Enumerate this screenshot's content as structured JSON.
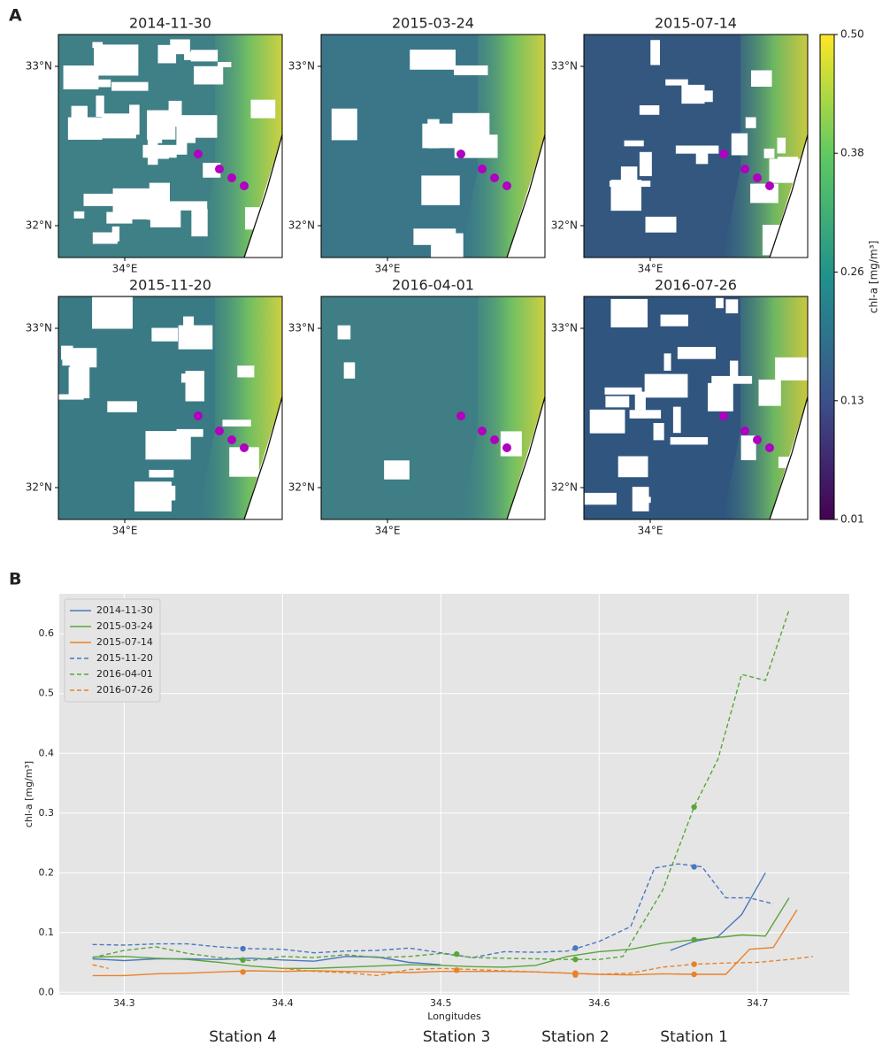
{
  "chart_data": [
    {
      "type": "map",
      "panel_label": "A",
      "panels": [
        {
          "title": "2014-11-30"
        },
        {
          "title": "2015-03-24"
        },
        {
          "title": "2015-07-14"
        },
        {
          "title": "2015-11-20"
        },
        {
          "title": "2016-04-01"
        },
        {
          "title": "2016-07-26"
        }
      ],
      "xlim": [
        33.585,
        34.985
      ],
      "ylim": [
        31.8,
        33.2
      ],
      "xticks": [
        {
          "value": 34,
          "label": "34°E"
        }
      ],
      "yticks": [
        {
          "value": 33,
          "label": "33°N"
        },
        {
          "value": 32,
          "label": "32°N"
        }
      ],
      "colorbar": {
        "label": "chl-a [mg/m³]",
        "lim": [
          0.01,
          0.5
        ],
        "ticks": [
          0.01,
          0.13,
          0.26,
          0.38,
          {
            "value": 0.5,
            "label": "0.50"
          }
        ],
        "colormap": [
          "#440154",
          "#3b528b",
          "#21918c",
          "#5ec962",
          "#fde725"
        ]
      }
    },
    {
      "type": "line",
      "panel_label": "B",
      "xlabel": "Longitudes",
      "ylabel": "chl-a [mg/m³]",
      "xlim": [
        34.259,
        34.758
      ],
      "ylim": [
        -0.004,
        0.667
      ],
      "xticks": [
        34.3,
        34.4,
        34.5,
        34.6,
        34.7
      ],
      "yticks": [
        {
          "value": 0,
          "label": "0.0"
        },
        0.1,
        0.2,
        0.3,
        0.4,
        0.5,
        0.6
      ],
      "grid": true,
      "legend": "upper left",
      "stations": [
        {
          "label": "Station 4",
          "x": 34.375
        },
        {
          "label": "Station 3",
          "x": 34.51
        },
        {
          "label": "Station 2",
          "x": 34.585
        },
        {
          "label": "Station 1",
          "x": 34.66
        }
      ],
      "series": [
        {
          "name": "2014-11-30",
          "color": "#4a78c0",
          "dash": false,
          "x": [
            34.28,
            34.3,
            34.32,
            34.34,
            34.36,
            34.38,
            34.4,
            34.42,
            34.44,
            34.46,
            34.48,
            34.5,
            34.52,
            34.645,
            34.66,
            34.675,
            34.69,
            34.705
          ],
          "values": [
            0.056,
            0.053,
            0.056,
            0.056,
            0.055,
            0.057,
            0.054,
            0.052,
            0.06,
            0.059,
            0.05,
            0.046,
            null,
            0.07,
            0.085,
            0.093,
            0.13,
            0.2
          ]
        },
        {
          "name": "2015-03-24",
          "color": "#5aa53c",
          "dash": false,
          "x": [
            34.28,
            34.3,
            34.32,
            34.34,
            34.36,
            34.38,
            34.4,
            34.42,
            34.44,
            34.46,
            34.48,
            34.5,
            34.52,
            34.54,
            34.56,
            34.58,
            34.6,
            34.62,
            34.64,
            34.66,
            34.68,
            34.69,
            34.705,
            34.72
          ],
          "values": [
            0.059,
            0.06,
            0.057,
            0.055,
            0.05,
            0.044,
            0.04,
            0.04,
            0.042,
            0.044,
            0.046,
            0.045,
            0.043,
            0.042,
            0.045,
            0.06,
            0.068,
            0.072,
            0.082,
            0.088,
            0.093,
            0.096,
            0.094,
            0.158
          ],
          "markers": {
            "x": [
              34.66
            ],
            "values": [
              0.088
            ]
          }
        },
        {
          "name": "2015-07-14",
          "color": "#e8822a",
          "dash": false,
          "x": [
            34.28,
            34.3,
            34.32,
            34.34,
            34.36,
            34.38,
            34.4,
            34.42,
            34.44,
            34.46,
            34.48,
            34.5,
            34.52,
            34.54,
            34.56,
            34.58,
            34.6,
            34.62,
            34.64,
            34.66,
            34.68,
            34.695,
            34.71,
            34.725
          ],
          "values": [
            0.028,
            0.028,
            0.031,
            0.032,
            0.034,
            0.036,
            0.035,
            0.036,
            0.035,
            0.034,
            0.033,
            0.035,
            0.035,
            0.035,
            0.034,
            0.032,
            0.03,
            0.029,
            0.031,
            0.03,
            0.03,
            0.072,
            0.075,
            0.138
          ],
          "markers": {
            "x": [
              34.375,
              34.51,
              34.585,
              34.66
            ],
            "values": [
              0.034,
              0.037,
              0.029,
              0.03
            ]
          }
        },
        {
          "name": "2015-11-20",
          "color": "#4a78c0",
          "dash": true,
          "x": [
            34.28,
            34.3,
            34.32,
            34.34,
            34.36,
            34.38,
            34.4,
            34.42,
            34.44,
            34.46,
            34.48,
            34.5,
            34.52,
            34.54,
            34.56,
            34.58,
            34.6,
            34.62,
            34.635,
            34.65,
            34.665,
            34.68,
            34.695,
            34.71
          ],
          "values": [
            0.08,
            0.079,
            0.081,
            0.081,
            0.076,
            0.073,
            0.072,
            0.066,
            0.069,
            0.07,
            0.074,
            0.066,
            0.058,
            0.068,
            0.067,
            0.069,
            0.085,
            0.11,
            0.208,
            0.215,
            0.21,
            0.158,
            0.158,
            0.148
          ],
          "markers": {
            "x": [
              34.375,
              34.585,
              34.66
            ],
            "values": [
              0.073,
              0.074,
              0.21
            ]
          }
        },
        {
          "name": "2016-04-01",
          "color": "#5aa53c",
          "dash": true,
          "x": [
            34.28,
            34.3,
            34.32,
            34.34,
            34.36,
            34.38,
            34.4,
            34.42,
            34.44,
            34.46,
            34.48,
            34.5,
            34.52,
            34.54,
            34.56,
            34.58,
            34.6,
            34.615,
            34.64,
            34.66,
            34.675,
            34.69,
            34.705,
            34.72
          ],
          "values": [
            0.058,
            0.07,
            0.076,
            0.065,
            0.058,
            0.053,
            0.06,
            0.058,
            0.063,
            0.058,
            0.06,
            0.065,
            0.058,
            0.057,
            0.056,
            0.055,
            0.055,
            0.06,
            0.17,
            0.31,
            0.39,
            0.532,
            0.522,
            0.64
          ],
          "markers": {
            "x": [
              34.375,
              34.51,
              34.585,
              34.66
            ],
            "values": [
              0.054,
              0.064,
              0.055,
              0.31
            ]
          }
        },
        {
          "name": "2016-07-26",
          "color": "#e8822a",
          "dash": true,
          "x": [
            34.28,
            34.29,
            34.3,
            34.4,
            34.42,
            34.44,
            34.46,
            34.48,
            34.5,
            34.52,
            34.54,
            34.56,
            34.58,
            34.6,
            34.62,
            34.64,
            34.66,
            34.68,
            34.7,
            34.72,
            34.735
          ],
          "values": [
            0.046,
            0.04,
            null,
            0.04,
            0.035,
            0.033,
            0.028,
            0.038,
            0.04,
            0.038,
            0.036,
            0.034,
            0.032,
            0.03,
            0.032,
            0.042,
            0.047,
            0.049,
            0.05,
            0.055,
            0.06
          ],
          "markers": {
            "x": [
              34.585,
              34.66
            ],
            "values": [
              0.032,
              0.047
            ]
          }
        }
      ]
    }
  ]
}
